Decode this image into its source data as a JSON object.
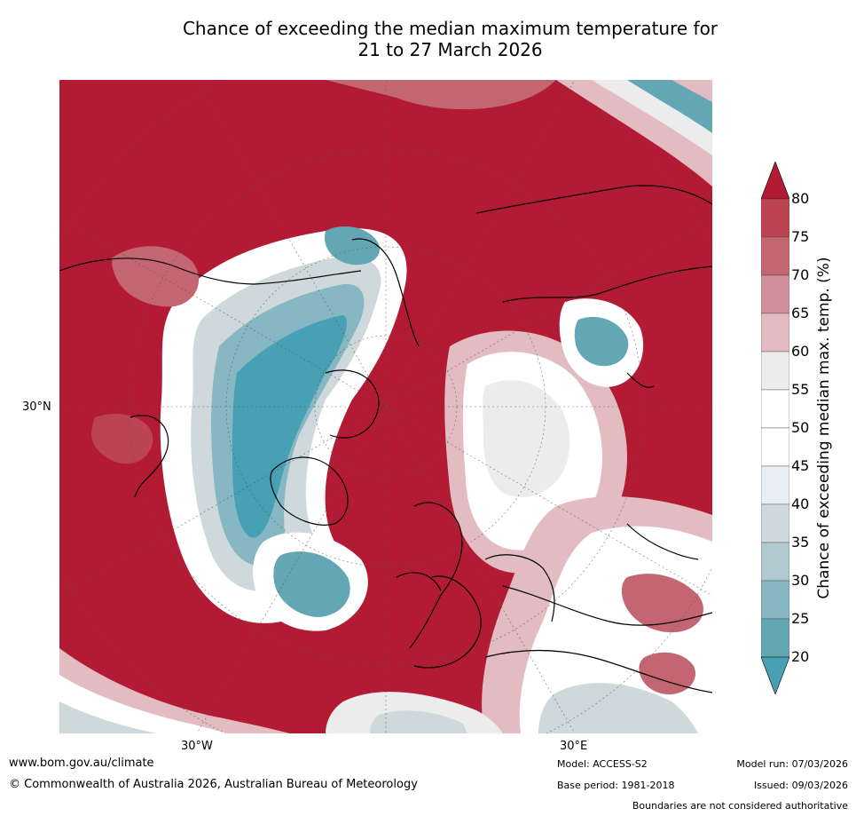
{
  "title": {
    "line1": "Chance of exceeding the median maximum temperature for",
    "line2": "21 to 27 March 2026"
  },
  "map": {
    "projection": "north-polar-stereographic",
    "lat_label": "30°N",
    "lon_labels": {
      "west": "30°W",
      "east": "30°E"
    }
  },
  "colorbar": {
    "title": "Chance of exceeding median max. temp. (%)",
    "ticks": [
      "80",
      "75",
      "70",
      "65",
      "60",
      "55",
      "50",
      "45",
      "40",
      "35",
      "30",
      "25",
      "20"
    ],
    "colors": {
      "above_80": "#b31b34",
      "75-80": "#bb4352",
      "70-75": "#c46671",
      "65-70": "#d0909a",
      "60-65": "#e2bcc1",
      "55-60": "#ececec",
      "50-55": "#ffffff",
      "45-50": "#ffffff",
      "40-45": "#e8eef2",
      "35-40": "#cfd9dc",
      "30-35": "#afc9ce",
      "25-30": "#86b7c2",
      "20-25": "#63a7b5",
      "below_20": "#47a0b3"
    }
  },
  "footer": {
    "url": "www.bom.gov.au/climate",
    "copyright": "© Commonwealth of Australia 2026, Australian Bureau of Meteorology",
    "model": "Model: ACCESS-S2",
    "base_period": "Base period: 1981-2018",
    "model_run": "Model run: 07/03/2026",
    "issued": "Issued: 09/03/2026",
    "disclaimer": "Boundaries are not considered authoritative"
  }
}
